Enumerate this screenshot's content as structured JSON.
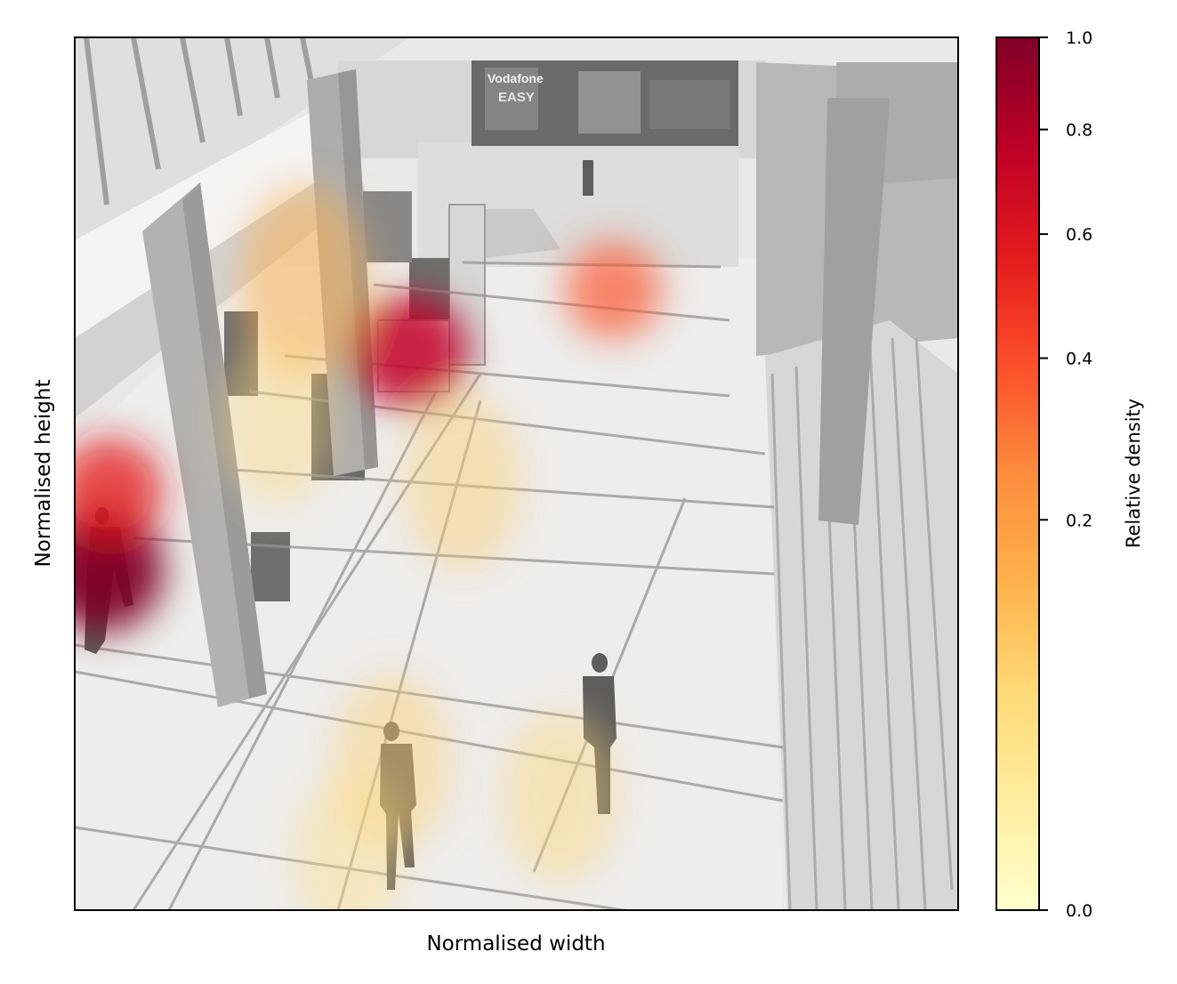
{
  "chart_data": {
    "type": "heatmap",
    "title": "",
    "xlabel": "Normalised width",
    "ylabel": "Normalised height",
    "x_ticks_shown": false,
    "y_ticks_shown": false,
    "xlim": [
      0,
      1
    ],
    "ylim": [
      0,
      1
    ],
    "background": "grayscale overhead surveillance frame of an indoor hall",
    "overlay_text": [
      "Vodafone",
      "EASY"
    ],
    "colorbar": {
      "label": "Relative density",
      "colormap": "YlOrRd",
      "scale": "sqrt",
      "range": [
        0.0,
        1.0
      ],
      "ticks": [
        0.0,
        0.2,
        0.4,
        0.6,
        0.8,
        1.0
      ],
      "tick_labels": [
        "0.0",
        "0.2",
        "0.4",
        "0.6",
        "0.8",
        "1.0"
      ],
      "colors": [
        "#ffffcc",
        "#ffeda0",
        "#fed976",
        "#feb24c",
        "#fd8d3c",
        "#fc4e2a",
        "#e31a1c",
        "#bd0026",
        "#800026"
      ]
    },
    "hotspots": [
      {
        "x": 0.03,
        "y": 0.39,
        "density": 1.0
      },
      {
        "x": 0.04,
        "y": 0.48,
        "density": 0.55
      },
      {
        "x": 0.38,
        "y": 0.64,
        "density": 0.75
      },
      {
        "x": 0.61,
        "y": 0.71,
        "density": 0.38
      },
      {
        "x": 0.26,
        "y": 0.72,
        "density": 0.15
      },
      {
        "x": 0.44,
        "y": 0.49,
        "density": 0.08
      },
      {
        "x": 0.36,
        "y": 0.17,
        "density": 0.08
      },
      {
        "x": 0.55,
        "y": 0.13,
        "density": 0.07
      },
      {
        "x": 0.23,
        "y": 0.56,
        "density": 0.06
      },
      {
        "x": 0.31,
        "y": 0.06,
        "density": 0.05
      }
    ]
  }
}
